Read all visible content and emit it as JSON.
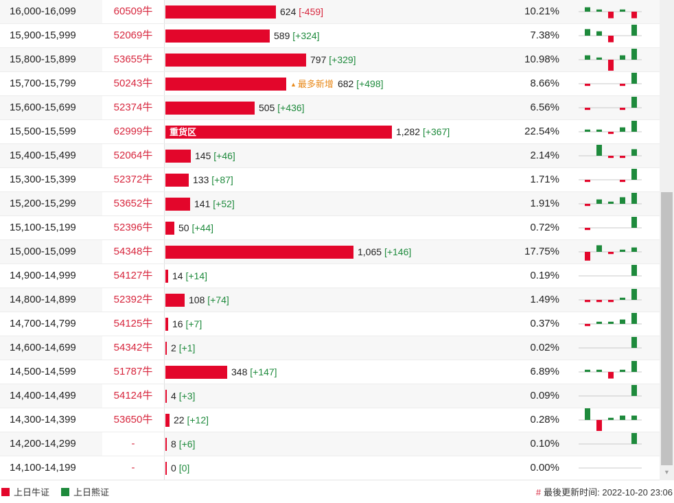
{
  "rows": [
    {
      "range": "16,000-16,099",
      "cbbc": "60509牛",
      "count": "624",
      "count_value": 624,
      "change": "[-459]",
      "negative": true,
      "pct": "10.21%",
      "inner_label": "",
      "badge": "",
      "spark": [
        2,
        1,
        -3,
        1,
        -3
      ]
    },
    {
      "range": "15,900-15,999",
      "cbbc": "52069牛",
      "count": "589",
      "count_value": 589,
      "change": "[+324]",
      "negative": false,
      "pct": "7.38%",
      "inner_label": "",
      "badge": "",
      "spark": [
        3,
        2,
        -3,
        0,
        5
      ]
    },
    {
      "range": "15,800-15,899",
      "cbbc": "53655牛",
      "count": "797",
      "count_value": 797,
      "change": "[+329]",
      "negative": false,
      "pct": "10.98%",
      "inner_label": "",
      "badge": "",
      "spark": [
        2,
        1,
        -5,
        2,
        5
      ]
    },
    {
      "range": "15,700-15,799",
      "cbbc": "50243牛",
      "count": "682",
      "count_value": 682,
      "change": "[+498]",
      "negative": false,
      "pct": "8.66%",
      "inner_label": "",
      "badge": "最多新增",
      "spark": [
        -1,
        0,
        0,
        -1,
        5
      ]
    },
    {
      "range": "15,600-15,699",
      "cbbc": "52374牛",
      "count": "505",
      "count_value": 505,
      "change": "[+436]",
      "negative": false,
      "pct": "6.56%",
      "inner_label": "",
      "badge": "",
      "spark": [
        -1,
        0,
        0,
        -1,
        5
      ]
    },
    {
      "range": "15,500-15,599",
      "cbbc": "62999牛",
      "count": "1,282",
      "count_value": 1282,
      "change": "[+367]",
      "negative": false,
      "pct": "22.54%",
      "inner_label": "重货区",
      "badge": "",
      "spark": [
        1,
        1,
        -1,
        2,
        5
      ]
    },
    {
      "range": "15,400-15,499",
      "cbbc": "52064牛",
      "count": "145",
      "count_value": 145,
      "change": "[+46]",
      "negative": false,
      "pct": "2.14%",
      "inner_label": "",
      "badge": "",
      "spark": [
        0,
        5,
        -1,
        -1,
        3
      ]
    },
    {
      "range": "15,300-15,399",
      "cbbc": "52372牛",
      "count": "133",
      "count_value": 133,
      "change": "[+87]",
      "negative": false,
      "pct": "1.71%",
      "inner_label": "",
      "badge": "",
      "spark": [
        -1,
        0,
        0,
        -1,
        5
      ]
    },
    {
      "range": "15,200-15,299",
      "cbbc": "53652牛",
      "count": "141",
      "count_value": 141,
      "change": "[+52]",
      "negative": false,
      "pct": "1.91%",
      "inner_label": "",
      "badge": "",
      "spark": [
        -1,
        2,
        1,
        3,
        5
      ]
    },
    {
      "range": "15,100-15,199",
      "cbbc": "52396牛",
      "count": "50",
      "count_value": 50,
      "change": "[+44]",
      "negative": false,
      "pct": "0.72%",
      "inner_label": "",
      "badge": "",
      "spark": [
        -1,
        0,
        0,
        0,
        5
      ]
    },
    {
      "range": "15,000-15,099",
      "cbbc": "54348牛",
      "count": "1,065",
      "count_value": 1065,
      "change": "[+146]",
      "negative": false,
      "pct": "17.75%",
      "inner_label": "",
      "badge": "",
      "spark": [
        -4,
        3,
        -1,
        1,
        2
      ]
    },
    {
      "range": "14,900-14,999",
      "cbbc": "54127牛",
      "count": "14",
      "count_value": 14,
      "change": "[+14]",
      "negative": false,
      "pct": "0.19%",
      "inner_label": "",
      "badge": "",
      "spark": [
        0,
        0,
        0,
        0,
        5
      ]
    },
    {
      "range": "14,800-14,899",
      "cbbc": "52392牛",
      "count": "108",
      "count_value": 108,
      "change": "[+74]",
      "negative": false,
      "pct": "1.49%",
      "inner_label": "",
      "badge": "",
      "spark": [
        -1,
        -1,
        -1,
        1,
        5
      ]
    },
    {
      "range": "14,700-14,799",
      "cbbc": "54125牛",
      "count": "16",
      "count_value": 16,
      "change": "[+7]",
      "negative": false,
      "pct": "0.37%",
      "inner_label": "",
      "badge": "",
      "spark": [
        -1,
        1,
        1,
        2,
        5
      ]
    },
    {
      "range": "14,600-14,699",
      "cbbc": "54342牛",
      "count": "2",
      "count_value": 2,
      "change": "[+1]",
      "negative": false,
      "pct": "0.02%",
      "inner_label": "",
      "badge": "",
      "spark": [
        0,
        0,
        0,
        0,
        5
      ]
    },
    {
      "range": "14,500-14,599",
      "cbbc": "51787牛",
      "count": "348",
      "count_value": 348,
      "change": "[+147]",
      "negative": false,
      "pct": "6.89%",
      "inner_label": "",
      "badge": "",
      "spark": [
        1,
        1,
        -3,
        1,
        5
      ]
    },
    {
      "range": "14,400-14,499",
      "cbbc": "54124牛",
      "count": "4",
      "count_value": 4,
      "change": "[+3]",
      "negative": false,
      "pct": "0.09%",
      "inner_label": "",
      "badge": "",
      "spark": [
        0,
        0,
        0,
        0,
        5
      ]
    },
    {
      "range": "14,300-14,399",
      "cbbc": "53650牛",
      "count": "22",
      "count_value": 22,
      "change": "[+12]",
      "negative": false,
      "pct": "0.28%",
      "inner_label": "",
      "badge": "",
      "spark": [
        6,
        -5,
        1,
        2,
        2
      ]
    },
    {
      "range": "14,200-14,299",
      "cbbc": "-",
      "count": "8",
      "count_value": 8,
      "change": "[+6]",
      "negative": false,
      "pct": "0.10%",
      "inner_label": "",
      "badge": "",
      "spark": [
        0,
        0,
        0,
        0,
        5
      ]
    },
    {
      "range": "14,100-14,199",
      "cbbc": "-",
      "count": "0",
      "count_value": 0,
      "change": "[0]",
      "negative": false,
      "pct": "0.00%",
      "inner_label": "",
      "badge": "",
      "spark": [
        0,
        0,
        0,
        0,
        0
      ]
    }
  ],
  "bar_max_value": 1282,
  "legend": {
    "bull": "上日牛证",
    "bear": "上日熊证"
  },
  "update": {
    "hash": "#",
    "text": "最後更新时间: 2022-10-20 23:06"
  },
  "colors": {
    "bull": "#e3062b",
    "bear": "#1e8a3c",
    "badge": "#e8891a"
  }
}
